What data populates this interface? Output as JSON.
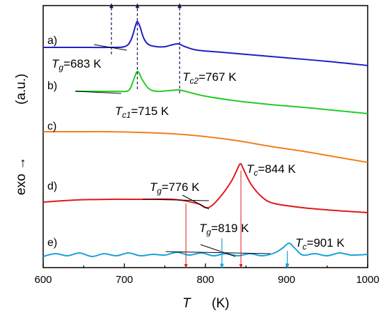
{
  "chart_data": {
    "type": "line",
    "xlim": [
      600,
      1000
    ],
    "xticks": [
      "600",
      "700",
      "800",
      "900",
      "1000"
    ],
    "xlabel_symbol": "T",
    "xlabel_unit": "(K)",
    "ylabel_left": "exo →",
    "ylabel_unit": "(a.u.)",
    "grid": false,
    "series": [
      {
        "label": "a)",
        "color": "#1f1fc8",
        "points": [
          [
            600,
            68
          ],
          [
            640,
            68
          ],
          [
            680,
            68
          ],
          [
            700,
            67
          ],
          [
            708,
            58
          ],
          [
            714,
            36
          ],
          [
            716,
            31
          ],
          [
            719,
            37
          ],
          [
            724,
            55
          ],
          [
            730,
            64
          ],
          [
            740,
            67
          ],
          [
            750,
            67
          ],
          [
            760,
            64
          ],
          [
            767,
            63
          ],
          [
            775,
            67
          ],
          [
            790,
            72
          ],
          [
            820,
            75
          ],
          [
            860,
            79
          ],
          [
            900,
            83
          ],
          [
            950,
            88
          ],
          [
            1000,
            94
          ]
        ]
      },
      {
        "label": "b)",
        "color": "#22cc22",
        "points": [
          [
            640,
            131
          ],
          [
            690,
            131
          ],
          [
            705,
            130
          ],
          [
            711,
            116
          ],
          [
            715,
            104
          ],
          [
            718,
            104
          ],
          [
            722,
            114
          ],
          [
            730,
            127
          ],
          [
            740,
            131
          ],
          [
            755,
            130
          ],
          [
            767,
            129
          ],
          [
            775,
            131
          ],
          [
            800,
            138
          ],
          [
            840,
            145
          ],
          [
            880,
            150
          ],
          [
            930,
            155
          ],
          [
            1000,
            163
          ]
        ]
      },
      {
        "label": "c)",
        "color": "#f08018",
        "points": [
          [
            600,
            189
          ],
          [
            640,
            189
          ],
          [
            680,
            189
          ],
          [
            720,
            190
          ],
          [
            760,
            192
          ],
          [
            800,
            196
          ],
          [
            840,
            202
          ],
          [
            880,
            210
          ],
          [
            920,
            217
          ],
          [
            960,
            225
          ],
          [
            1000,
            233
          ]
        ]
      },
      {
        "label": "d)",
        "color": "#e01818",
        "points": [
          [
            600,
            290
          ],
          [
            640,
            287
          ],
          [
            680,
            286
          ],
          [
            720,
            286
          ],
          [
            760,
            286
          ],
          [
            790,
            292
          ],
          [
            800,
            298
          ],
          [
            808,
            295
          ],
          [
            820,
            280
          ],
          [
            832,
            260
          ],
          [
            838,
            246
          ],
          [
            843,
            235
          ],
          [
            847,
            243
          ],
          [
            856,
            264
          ],
          [
            870,
            283
          ],
          [
            885,
            292
          ],
          [
            920,
            298
          ],
          [
            960,
            302
          ],
          [
            1000,
            305
          ]
        ]
      },
      {
        "label": "e)",
        "color": "#1aa0e0",
        "points": [
          [
            600,
            368
          ],
          [
            615,
            364
          ],
          [
            630,
            367
          ],
          [
            645,
            363
          ],
          [
            660,
            368
          ],
          [
            675,
            364
          ],
          [
            690,
            367
          ],
          [
            705,
            363
          ],
          [
            720,
            367
          ],
          [
            735,
            365
          ],
          [
            750,
            366
          ],
          [
            765,
            362
          ],
          [
            780,
            366
          ],
          [
            795,
            363
          ],
          [
            810,
            367
          ],
          [
            825,
            364
          ],
          [
            840,
            367
          ],
          [
            855,
            364
          ],
          [
            870,
            367
          ],
          [
            885,
            363
          ],
          [
            895,
            356
          ],
          [
            903,
            349
          ],
          [
            910,
            356
          ],
          [
            920,
            366
          ],
          [
            935,
            364
          ],
          [
            950,
            367
          ],
          [
            965,
            363
          ],
          [
            980,
            366
          ],
          [
            1000,
            365
          ]
        ]
      }
    ],
    "annotations": [
      {
        "var": "T",
        "sub": "g",
        "value": "=683 K"
      },
      {
        "var": "T",
        "sub": "c2",
        "value": "=767 K"
      },
      {
        "var": "T",
        "sub": "c1",
        "value": "=715 K"
      },
      {
        "var": "T",
        "sub": "g",
        "value": "=776 K"
      },
      {
        "var": "T",
        "sub": "c",
        "value": "=844 K"
      },
      {
        "var": "T",
        "sub": "g",
        "value": "=819 K"
      },
      {
        "var": "T",
        "sub": "c",
        "value": "=901 K"
      }
    ]
  }
}
